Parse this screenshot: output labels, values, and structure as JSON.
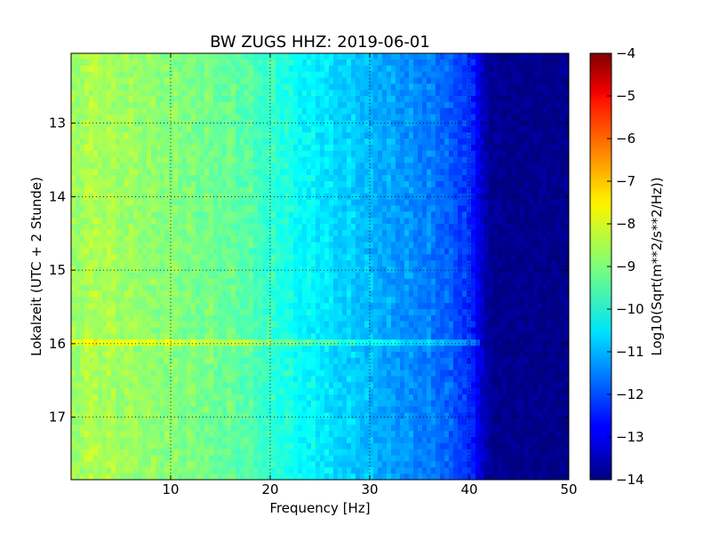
{
  "chart_data": {
    "type": "heatmap",
    "title": "BW ZUGS HHZ: 2019-06-01",
    "xlabel": "Frequency [Hz]",
    "ylabel": "Lokalzeit (UTC + 2 Stunde)",
    "colorbar_label": "Log10(Sqrt(m**2/s**2/Hz))",
    "xlim": [
      0,
      50
    ],
    "ylim": [
      12.05,
      17.85
    ],
    "y_inverted": true,
    "xticks": [
      10,
      20,
      30,
      40,
      50
    ],
    "yticks": [
      13,
      14,
      15,
      16,
      17
    ],
    "colorbar_range": [
      -14,
      -4
    ],
    "colorbar_ticks": [
      -4,
      -5,
      -6,
      -7,
      -8,
      -9,
      -10,
      -11,
      -12,
      -13,
      -14
    ],
    "colormap": "jet",
    "grid": true,
    "profile": {
      "frequency_hz": [
        0,
        2,
        4,
        6,
        8,
        10,
        12,
        14,
        16,
        18,
        20,
        22,
        24,
        26,
        28,
        30,
        32,
        34,
        36,
        38,
        40,
        41,
        42,
        44,
        46,
        48,
        50
      ],
      "level": [
        -8.8,
        -8.6,
        -8.7,
        -8.8,
        -8.9,
        -9.0,
        -9.1,
        -9.2,
        -9.3,
        -9.5,
        -9.8,
        -10.1,
        -10.4,
        -10.6,
        -10.8,
        -11.0,
        -11.2,
        -11.4,
        -11.6,
        -11.9,
        -12.4,
        -13.0,
        -13.8,
        -13.9,
        -13.9,
        -13.9,
        -13.9
      ]
    },
    "notable_feature": {
      "time": 16.0,
      "level_shift": 0.8
    }
  }
}
